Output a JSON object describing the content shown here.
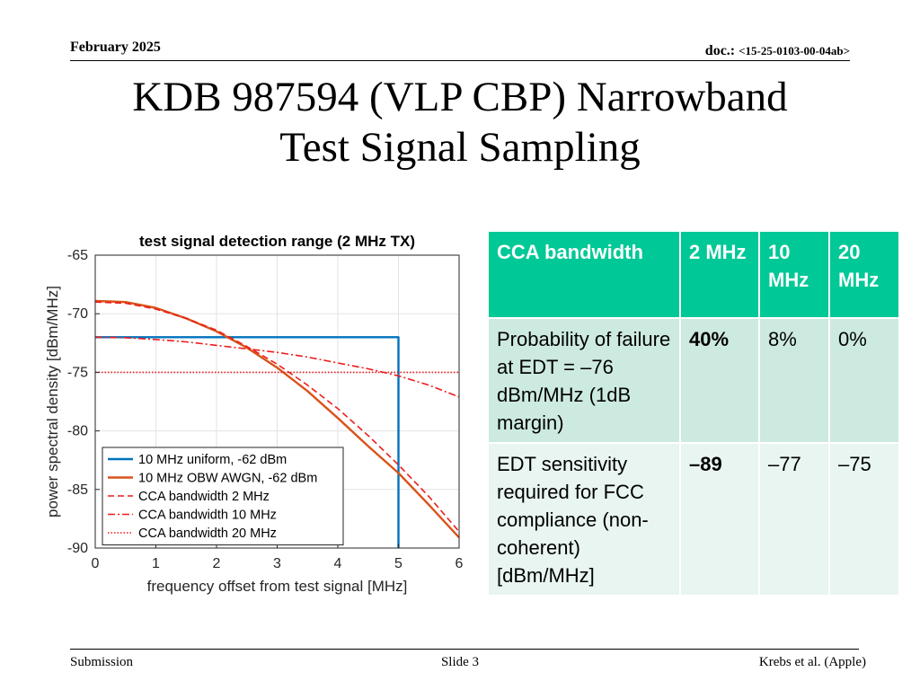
{
  "header": {
    "date": "February 2025",
    "doc_label": "doc.: ",
    "doc_number": "<15-25-0103-00-04ab>"
  },
  "title": {
    "line1": "KDB 987594 (VLP CBP) Narrowband",
    "line2": "Test Signal Sampling"
  },
  "chart_data": {
    "type": "line",
    "title": "test signal detection range (2 MHz TX)",
    "xlabel": "frequency offset from test signal [MHz]",
    "ylabel": "power spectral density [dBm/MHz]",
    "xlim": [
      0,
      6
    ],
    "ylim": [
      -90,
      -65
    ],
    "xticks": [
      0,
      1,
      2,
      3,
      4,
      5,
      6
    ],
    "yticks": [
      -65,
      -70,
      -75,
      -80,
      -85,
      -90
    ],
    "grid": true,
    "legend_position": "bottom-left",
    "series": [
      {
        "name": "10 MHz uniform, -62 dBm",
        "color": "#0072bd",
        "style": "solid",
        "x": [
          0,
          5,
          5
        ],
        "y": [
          -72,
          -72,
          -90
        ]
      },
      {
        "name": "10 MHz OBW AWGN, -62 dBm",
        "color": "#d95319",
        "style": "solid",
        "x": [
          0,
          0.5,
          1,
          1.5,
          2,
          2.5,
          3,
          3.5,
          4,
          4.5,
          5,
          5.5,
          6
        ],
        "y": [
          -68.9,
          -69.0,
          -69.5,
          -70.4,
          -71.5,
          -72.9,
          -74.6,
          -76.6,
          -78.9,
          -81.3,
          -83.6,
          -86.3,
          -89.1
        ]
      },
      {
        "name": "CCA bandwidth 2 MHz",
        "color": "#ee1c1c",
        "style": "dashed",
        "x": [
          0,
          0.5,
          1,
          1.5,
          2,
          2.5,
          3,
          3.5,
          4,
          4.5,
          5,
          5.5,
          6
        ],
        "y": [
          -69.0,
          -69.1,
          -69.6,
          -70.4,
          -71.4,
          -72.8,
          -74.3,
          -76.1,
          -78.1,
          -80.4,
          -82.9,
          -85.6,
          -88.6
        ]
      },
      {
        "name": "CCA bandwidth 10 MHz",
        "color": "#ee1c1c",
        "style": "dashdot",
        "x": [
          0,
          0.5,
          1,
          1.5,
          2,
          2.5,
          3,
          3.5,
          4,
          4.5,
          5,
          5.5,
          6
        ],
        "y": [
          -72.0,
          -72.05,
          -72.2,
          -72.4,
          -72.7,
          -73.0,
          -73.3,
          -73.7,
          -74.2,
          -74.7,
          -75.3,
          -76.1,
          -77.1
        ]
      },
      {
        "name": "CCA bandwidth 20 MHz",
        "color": "#ee1c1c",
        "style": "dotted",
        "x": [
          0,
          6
        ],
        "y": [
          -75,
          -75
        ]
      }
    ]
  },
  "table": {
    "headers": [
      "CCA bandwidth",
      "2 MHz",
      "10 MHz",
      "20 MHz"
    ],
    "rows": [
      [
        "Probability of failure at EDT = –76 dBm/MHz (1dB margin)",
        "40%",
        "8%",
        "0%"
      ],
      [
        "EDT sensitivity required for FCC compliance (non-coherent) [dBm/MHz]",
        "–89",
        "–77",
        "–75"
      ]
    ]
  },
  "footer": {
    "left": "Submission",
    "center": "Slide 3",
    "right": "Krebs et al. (Apple)"
  }
}
